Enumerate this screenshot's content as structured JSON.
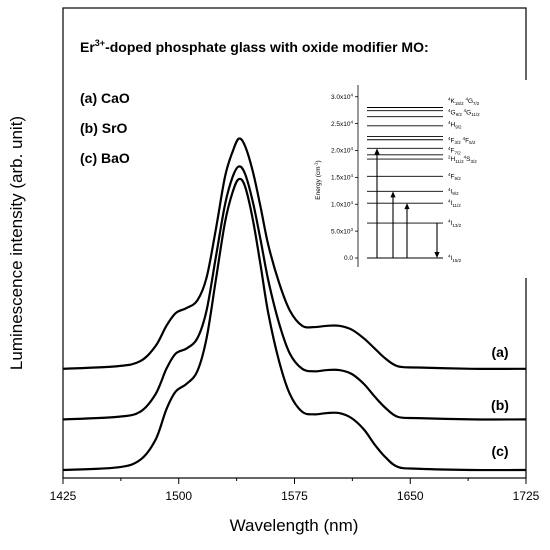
{
  "chart_data": {
    "type": "line",
    "title": "Er³⁺-doped phosphate glass with oxide modifier MO:",
    "title_parts": {
      "pre": "Er",
      "sup": "3+",
      "post": "-doped phosphate glass with oxide modifier MO:"
    },
    "xlabel": "Wavelength (nm)",
    "ylabel": "Luminescence intensity (arb. unit)",
    "xlim": [
      1425,
      1725
    ],
    "xticks": [
      1425,
      1500,
      1575,
      1650,
      1725
    ],
    "xtick_labels": [
      "1425",
      "1500",
      "1575",
      "1650",
      "1725"
    ],
    "y_ticks_shown": false,
    "legend_entries": [
      "(a) CaO",
      "(b) SrO",
      "(c) BaO"
    ],
    "series": [
      {
        "label": "(a)",
        "offset": 0.4,
        "x": [
          1425,
          1460,
          1475,
          1485,
          1492,
          1498,
          1505,
          1512,
          1518,
          1524,
          1530,
          1535,
          1539,
          1543,
          1548,
          1553,
          1558,
          1565,
          1572,
          1580,
          1588,
          1596,
          1604,
          1612,
          1620,
          1627,
          1634,
          1642,
          1655,
          1690,
          1725
        ],
        "y": [
          0,
          0.01,
          0.03,
          0.09,
          0.17,
          0.22,
          0.24,
          0.27,
          0.36,
          0.55,
          0.76,
          0.86,
          0.91,
          0.88,
          0.78,
          0.64,
          0.49,
          0.34,
          0.23,
          0.17,
          0.165,
          0.17,
          0.17,
          0.155,
          0.12,
          0.08,
          0.04,
          0.01,
          0.005,
          0,
          0
        ]
      },
      {
        "label": "(b)",
        "offset": 0.2,
        "x": [
          1425,
          1460,
          1475,
          1485,
          1492,
          1498,
          1505,
          1512,
          1518,
          1524,
          1530,
          1535,
          1539,
          1543,
          1548,
          1553,
          1558,
          1565,
          1572,
          1580,
          1588,
          1596,
          1604,
          1612,
          1620,
          1627,
          1634,
          1642,
          1655,
          1690,
          1725
        ],
        "y": [
          0,
          0.01,
          0.03,
          0.1,
          0.2,
          0.26,
          0.28,
          0.32,
          0.43,
          0.64,
          0.85,
          0.96,
          1.0,
          0.97,
          0.86,
          0.71,
          0.55,
          0.38,
          0.26,
          0.2,
          0.19,
          0.195,
          0.195,
          0.18,
          0.14,
          0.09,
          0.045,
          0.01,
          0.005,
          0,
          0
        ]
      },
      {
        "label": "(c)",
        "offset": 0.0,
        "x": [
          1425,
          1460,
          1475,
          1485,
          1492,
          1498,
          1505,
          1512,
          1518,
          1524,
          1530,
          1535,
          1539,
          1543,
          1548,
          1553,
          1558,
          1565,
          1572,
          1580,
          1588,
          1596,
          1604,
          1612,
          1620,
          1627,
          1634,
          1642,
          1655,
          1690,
          1725
        ],
        "y": [
          0,
          0.01,
          0.04,
          0.12,
          0.24,
          0.31,
          0.34,
          0.39,
          0.52,
          0.75,
          0.98,
          1.1,
          1.15,
          1.12,
          0.99,
          0.81,
          0.62,
          0.43,
          0.3,
          0.23,
          0.22,
          0.225,
          0.225,
          0.205,
          0.16,
          0.1,
          0.05,
          0.012,
          0.005,
          0,
          0
        ]
      }
    ],
    "inset": {
      "type": "energy-level-diagram",
      "ylabel": "Energy (cm⁻¹)",
      "ylabel_parts": {
        "pre": "Energy (cm",
        "sup": "-1",
        "post": ")"
      },
      "ylim": [
        0,
        32000
      ],
      "yticks": [
        0,
        5000,
        10000,
        15000,
        20000,
        25000,
        30000
      ],
      "ytick_labels": [
        {
          "mant": "0.0",
          "exp": ""
        },
        {
          "mant": "5.0x10",
          "exp": "3"
        },
        {
          "mant": "1.0x10",
          "exp": "4"
        },
        {
          "mant": "1.5x10",
          "exp": "4"
        },
        {
          "mant": "2.0x10",
          "exp": "4"
        },
        {
          "mant": "2.5x10",
          "exp": "4"
        },
        {
          "mant": "3.0x10",
          "exp": "4"
        }
      ],
      "levels": [
        0,
        6500,
        10200,
        12400,
        15200,
        18400,
        19200,
        20400,
        22000,
        22600,
        24600,
        26300,
        27400,
        28000
      ],
      "level_labels": [
        {
          "energy": 0,
          "parts": [
            [
              "sup",
              "4"
            ],
            [
              "t",
              "I"
            ],
            [
              "sub",
              "15/2"
            ]
          ]
        },
        {
          "energy": 6500,
          "parts": [
            [
              "sup",
              "4"
            ],
            [
              "t",
              "I"
            ],
            [
              "sub",
              "13/2"
            ]
          ]
        },
        {
          "energy": 10200,
          "parts": [
            [
              "sup",
              "4"
            ],
            [
              "t",
              "I"
            ],
            [
              "sub",
              "11/2"
            ]
          ]
        },
        {
          "energy": 12400,
          "parts": [
            [
              "sup",
              "4"
            ],
            [
              "t",
              "I"
            ],
            [
              "sub",
              "9/2"
            ]
          ]
        },
        {
          "energy": 15200,
          "parts": [
            [
              "sup",
              "4"
            ],
            [
              "t",
              "F"
            ],
            [
              "sub",
              "9/2"
            ]
          ]
        },
        {
          "energy": 18400,
          "parts": [
            [
              "sup",
              "2"
            ],
            [
              "t",
              "H"
            ],
            [
              "sub",
              "11/2"
            ],
            [
              "sup",
              "4"
            ],
            [
              "t",
              "S"
            ],
            [
              "sub",
              "3/2"
            ]
          ]
        },
        {
          "energy": 20000,
          "parts": [
            [
              "sup",
              "4"
            ],
            [
              "t",
              "F"
            ],
            [
              "sub",
              "7/2"
            ]
          ]
        },
        {
          "energy": 21900,
          "parts": [
            [
              "sup",
              "4"
            ],
            [
              "t",
              "F"
            ],
            [
              "sub",
              "3/2"
            ],
            [
              "t",
              " "
            ],
            [
              "sup",
              "4"
            ],
            [
              "t",
              "F"
            ],
            [
              "sub",
              "5/2"
            ]
          ]
        },
        {
          "energy": 24800,
          "parts": [
            [
              "sup",
              "4"
            ],
            [
              "t",
              "H"
            ],
            [
              "sub",
              "9/2"
            ]
          ]
        },
        {
          "energy": 27100,
          "parts": [
            [
              "sup",
              "4"
            ],
            [
              "t",
              "G"
            ],
            [
              "sub",
              "9/2"
            ],
            [
              "t",
              " "
            ],
            [
              "sup",
              "4"
            ],
            [
              "t",
              "G"
            ],
            [
              "sub",
              "11/2"
            ]
          ]
        },
        {
          "energy": 29200,
          "parts": [
            [
              "sup",
              "4"
            ],
            [
              "t",
              "K"
            ],
            [
              "sub",
              "15/2"
            ],
            [
              "t",
              " "
            ],
            [
              "sup",
              "4"
            ],
            [
              "t",
              "G"
            ],
            [
              "sub",
              "7/2"
            ]
          ]
        }
      ],
      "transitions": [
        {
          "from": 0,
          "to": 20400,
          "direction": "up"
        },
        {
          "from": 0,
          "to": 12400,
          "direction": "up"
        },
        {
          "from": 0,
          "to": 10200,
          "direction": "up"
        },
        {
          "from": 6500,
          "to": 0,
          "direction": "down"
        }
      ]
    }
  }
}
